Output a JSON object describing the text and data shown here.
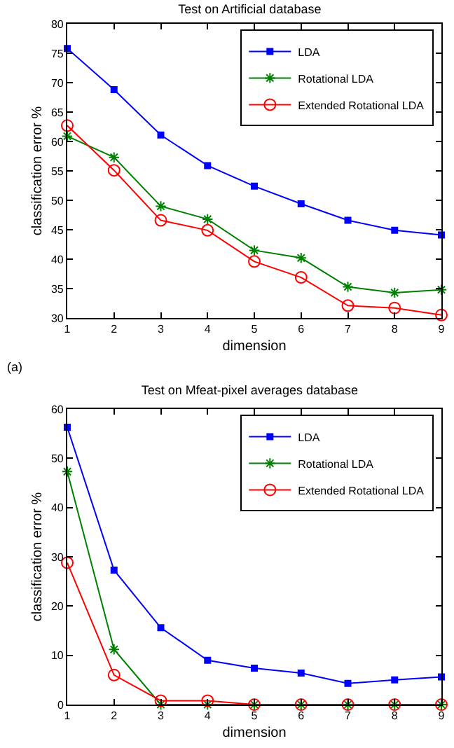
{
  "chart_data": [
    {
      "type": "line",
      "title": "Test on Artificial database",
      "xlabel": "dimension",
      "ylabel": "classification error %",
      "x": [
        1,
        2,
        3,
        4,
        5,
        6,
        7,
        8,
        9
      ],
      "xlim": [
        1,
        9
      ],
      "xticks": [
        1,
        2,
        3,
        4,
        5,
        6,
        7,
        8,
        9
      ],
      "ylim": [
        30,
        80
      ],
      "yticks": [
        30,
        35,
        40,
        45,
        50,
        55,
        60,
        65,
        70,
        75,
        80
      ],
      "grid": false,
      "legend": "top right",
      "annotations": [
        "(a)"
      ],
      "series": [
        {
          "name": "LDA",
          "color": "#0000ff",
          "marker": "square",
          "values": [
            75.8,
            68.8,
            61.1,
            55.9,
            52.4,
            49.4,
            46.6,
            44.9,
            44.1
          ]
        },
        {
          "name": "Rotational LDA",
          "color": "#008000",
          "marker": "cross",
          "values": [
            60.9,
            57.3,
            49.0,
            46.8,
            41.5,
            40.2,
            35.3,
            34.3,
            34.8
          ]
        },
        {
          "name": "Extended Rotational LDA",
          "color": "#ff0000",
          "marker": "circle",
          "values": [
            62.7,
            55.1,
            46.6,
            44.9,
            39.6,
            36.9,
            32.1,
            31.7,
            30.5
          ]
        }
      ]
    },
    {
      "type": "line",
      "title": "Test on Mfeat-pixel averages database",
      "xlabel": "dimension",
      "ylabel": "classification error %",
      "x": [
        1,
        2,
        3,
        4,
        5,
        6,
        7,
        8,
        9
      ],
      "xlim": [
        1,
        9
      ],
      "xticks": [
        1,
        2,
        3,
        4,
        5,
        6,
        7,
        8,
        9
      ],
      "ylim": [
        0,
        60
      ],
      "yticks": [
        0,
        10,
        20,
        30,
        40,
        50,
        60
      ],
      "grid": false,
      "legend": "top right",
      "series": [
        {
          "name": "LDA",
          "color": "#0000ff",
          "marker": "square",
          "values": [
            56.3,
            27.3,
            15.6,
            9.0,
            7.4,
            6.4,
            4.3,
            5.0,
            5.6
          ]
        },
        {
          "name": "Rotational LDA",
          "color": "#008000",
          "marker": "cross",
          "values": [
            47.3,
            11.2,
            0,
            0,
            0,
            0,
            0,
            0,
            0
          ]
        },
        {
          "name": "Extended Rotational LDA",
          "color": "#ff0000",
          "marker": "circle",
          "values": [
            28.8,
            6.0,
            0.8,
            0.8,
            0,
            0,
            0,
            0,
            0
          ]
        }
      ]
    }
  ]
}
